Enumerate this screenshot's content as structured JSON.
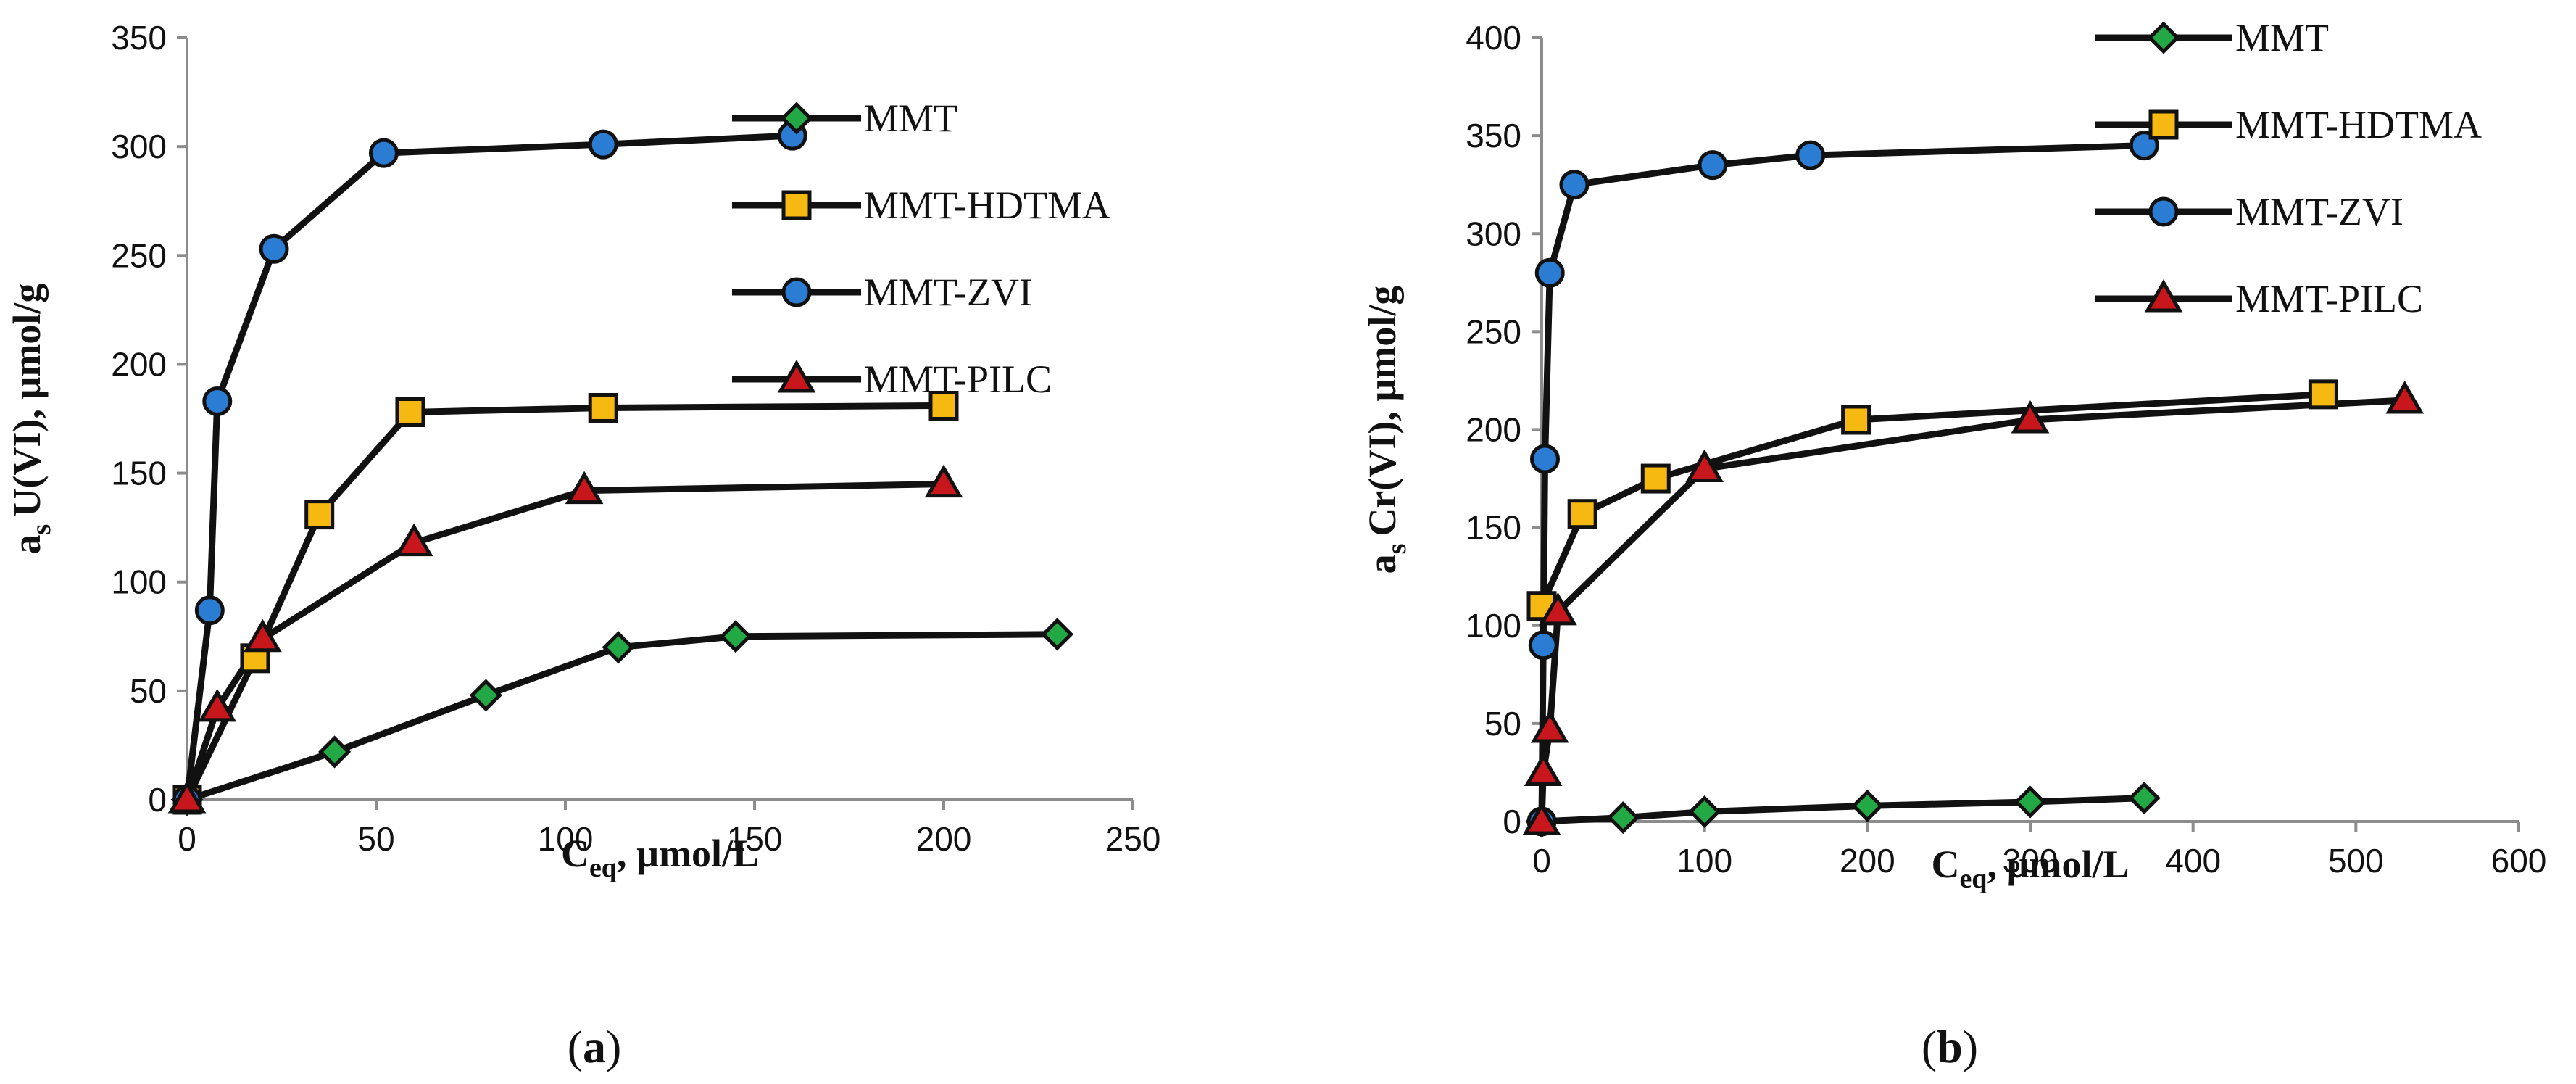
{
  "chart_data": [
    {
      "type": "line",
      "panel_label": "(a)",
      "xlabel": "C_eq, µmol/L",
      "ylabel": "a_s U(VI), µmol/g",
      "xlim": [
        0,
        250
      ],
      "ylim": [
        0,
        350
      ],
      "xticks": [
        0,
        50,
        100,
        150,
        200,
        250
      ],
      "yticks": [
        0,
        50,
        100,
        150,
        200,
        250,
        300,
        350
      ],
      "legend_position": "top-right",
      "series": [
        {
          "name": "MMT",
          "marker": "diamond",
          "color": "#22a845",
          "x": [
            0,
            39,
            79,
            114,
            145,
            230
          ],
          "y": [
            0,
            22,
            48,
            70,
            75,
            76
          ]
        },
        {
          "name": "MMT-HDTMA",
          "marker": "square",
          "color": "#f6b911",
          "x": [
            0,
            18,
            35,
            59,
            110,
            200
          ],
          "y": [
            0,
            65,
            131,
            178,
            180,
            181
          ]
        },
        {
          "name": "MMT-ZVI",
          "marker": "circle",
          "color": "#2b7cd3",
          "x": [
            0,
            6,
            8,
            23,
            52,
            110,
            160
          ],
          "y": [
            0,
            87,
            183,
            253,
            297,
            301,
            305
          ]
        },
        {
          "name": "MMT-PILC",
          "marker": "triangle",
          "color": "#c8161d",
          "x": [
            0,
            8,
            20,
            60,
            105,
            200
          ],
          "y": [
            0,
            42,
            74,
            118,
            142,
            145
          ]
        }
      ]
    },
    {
      "type": "line",
      "panel_label": "(b)",
      "xlabel": "C_eq, µmol/L",
      "ylabel": "a_s Cr(VI), µmol/g",
      "xlim": [
        0,
        600
      ],
      "ylim": [
        0,
        400
      ],
      "xticks": [
        0,
        100,
        200,
        300,
        400,
        500,
        600
      ],
      "yticks": [
        0,
        50,
        100,
        150,
        200,
        250,
        300,
        350,
        400
      ],
      "legend_position": "top-right",
      "series": [
        {
          "name": "MMT",
          "marker": "diamond",
          "color": "#22a845",
          "x": [
            0,
            50,
            100,
            200,
            300,
            370
          ],
          "y": [
            0,
            2,
            5,
            8,
            10,
            12
          ]
        },
        {
          "name": "MMT-HDTMA",
          "marker": "square",
          "color": "#f6b911",
          "x": [
            0,
            25,
            70,
            193,
            480
          ],
          "y": [
            110,
            157,
            175,
            205,
            218
          ]
        },
        {
          "name": "MMT-ZVI",
          "marker": "circle",
          "color": "#2b7cd3",
          "x": [
            0,
            1,
            2,
            5,
            20,
            105,
            165,
            370
          ],
          "y": [
            0,
            90,
            185,
            280,
            325,
            335,
            340,
            345
          ]
        },
        {
          "name": "MMT-PILC",
          "marker": "triangle",
          "color": "#c8161d",
          "x": [
            0,
            1,
            5,
            10,
            100,
            300,
            530
          ],
          "y": [
            0,
            25,
            47,
            107,
            180,
            205,
            215
          ]
        }
      ]
    }
  ]
}
